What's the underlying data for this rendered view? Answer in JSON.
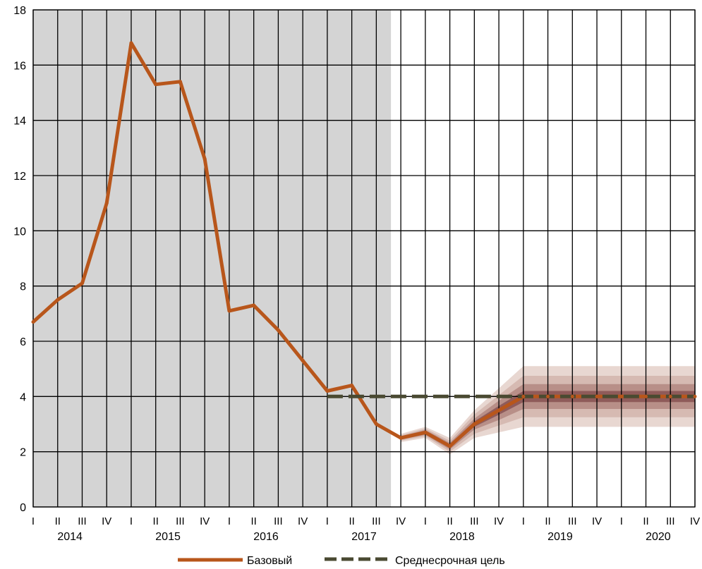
{
  "chart_data": {
    "type": "line",
    "title": "",
    "xlabel": "",
    "ylabel": "",
    "ylim": [
      0,
      18
    ],
    "yticks": [
      "0",
      "2",
      "4",
      "6",
      "8",
      "10",
      "12",
      "14",
      "16",
      "18"
    ],
    "grid": true,
    "legend_position": "bottom",
    "quarter_labels": [
      "I",
      "II",
      "III",
      "IV"
    ],
    "years": [
      "2014",
      "2015",
      "2016",
      "2017",
      "2018",
      "2019",
      "2020"
    ],
    "history_shaded_through": "2017 IV",
    "series": [
      {
        "name": "Базовый",
        "color": "#b8561b",
        "style": "solid",
        "x": [
          "2014 I",
          "2014 II",
          "2014 III",
          "2014 IV",
          "2015 I",
          "2015 II",
          "2015 III",
          "2015 IV",
          "2016 I",
          "2016 II",
          "2016 III",
          "2016 IV",
          "2017 I",
          "2017 II",
          "2017 III",
          "2017 IV",
          "2018 I",
          "2018 II",
          "2018 III",
          "2018 IV",
          "2019 I",
          "2019 II",
          "2019 III",
          "2019 IV",
          "2020 I",
          "2020 II",
          "2020 III",
          "2020 IV"
        ],
        "values": [
          6.7,
          7.5,
          8.1,
          11.0,
          16.8,
          15.3,
          15.4,
          12.6,
          7.1,
          7.3,
          6.4,
          5.3,
          4.2,
          4.4,
          3.0,
          2.5,
          2.7,
          2.2,
          3.0,
          3.5,
          4.0,
          4.0,
          4.0,
          4.0,
          4.0,
          4.0,
          4.0,
          4.0
        ]
      },
      {
        "name": "Среднесрочная цель",
        "color": "#4a4a32",
        "style": "dashed",
        "x": [
          "2017 I",
          "2020 IV"
        ],
        "values": [
          4.0,
          4.0
        ]
      }
    ],
    "fan": {
      "x": [
        "2017 IV",
        "2018 I",
        "2018 II",
        "2018 III",
        "2018 IV",
        "2019 I",
        "2019 II",
        "2019 III",
        "2019 IV",
        "2020 I",
        "2020 II",
        "2020 III",
        "2020 IV"
      ],
      "center": [
        2.5,
        2.7,
        2.2,
        3.0,
        3.5,
        4.0,
        4.0,
        4.0,
        4.0,
        4.0,
        4.0,
        4.0,
        4.0
      ],
      "half_widths": [
        [
          0.15,
          0.2,
          0.3,
          0.5,
          0.8,
          1.1,
          1.1,
          1.1,
          1.1,
          1.1,
          1.1,
          1.1,
          1.1
        ],
        [
          0.1,
          0.14,
          0.2,
          0.35,
          0.55,
          0.75,
          0.75,
          0.75,
          0.75,
          0.75,
          0.75,
          0.75,
          0.75
        ],
        [
          0.06,
          0.09,
          0.12,
          0.2,
          0.35,
          0.45,
          0.45,
          0.45,
          0.45,
          0.45,
          0.45,
          0.45,
          0.45
        ],
        [
          0.03,
          0.04,
          0.06,
          0.1,
          0.16,
          0.2,
          0.2,
          0.2,
          0.2,
          0.2,
          0.2,
          0.2,
          0.2
        ]
      ],
      "colors": [
        "#e8d7d1",
        "#d6bab2",
        "#b88f88",
        "#8f5b5a"
      ]
    },
    "colors": {
      "history_bg": "#d4d4d4",
      "grid": "#000000"
    }
  }
}
